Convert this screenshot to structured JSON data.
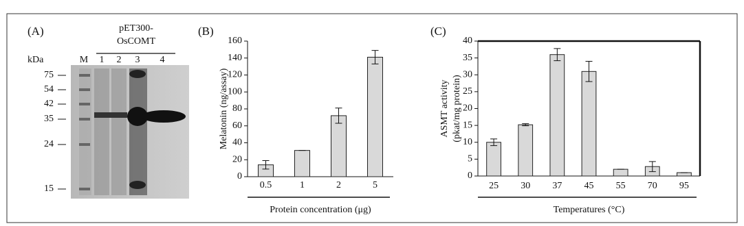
{
  "panel_a": {
    "label": "(A)",
    "construct": [
      "pET300-",
      "OsCOMT"
    ],
    "kda_label": "kDa",
    "lanes": [
      "M",
      "1",
      "2",
      "3",
      "4"
    ],
    "markers": [
      "75",
      "54",
      "42",
      "35",
      "24",
      "15"
    ]
  },
  "chart_data": [
    {
      "type": "bar",
      "panel_label": "(B)",
      "y_label": [
        "Melatonin (ng/assay)"
      ],
      "x_label": "Protein concentration (μg)",
      "categories": [
        "0.5",
        "1",
        "2",
        "5"
      ],
      "values": [
        14,
        31,
        72,
        141
      ],
      "errors": [
        5,
        0,
        9,
        8
      ],
      "color": "#d9d9d9",
      "ylim": [
        0,
        160
      ],
      "yticks": [
        0,
        20,
        40,
        60,
        80,
        100,
        120,
        140,
        160
      ]
    },
    {
      "type": "bar",
      "panel_label": "(C)",
      "y_label": [
        "ASMT activity",
        "(pkat/mg protein)"
      ],
      "x_label": "Temperatures (°C)",
      "categories": [
        "25",
        "30",
        "37",
        "45",
        "55",
        "70",
        "95"
      ],
      "values": [
        10,
        15.2,
        36,
        31,
        2,
        2.8,
        1
      ],
      "errors": [
        1,
        0.3,
        1.8,
        3,
        0,
        1.5,
        0
      ],
      "color": "#d9d9d9",
      "ylim": [
        0,
        40
      ],
      "yticks": [
        0,
        5,
        10,
        15,
        20,
        25,
        30,
        35,
        40
      ]
    }
  ]
}
